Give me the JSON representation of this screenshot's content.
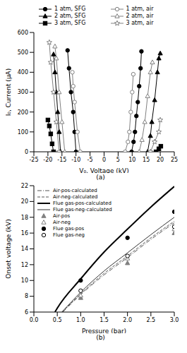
{
  "chart_data": [
    {
      "type": "line",
      "title": "(a)",
      "x_label": "V₀, Voltage (kV)",
      "y_label": "I₀, Current (μA)",
      "xlim": [
        -25,
        25
      ],
      "xticks": [
        -25,
        -20,
        -15,
        -10,
        -5,
        0,
        5,
        10,
        15,
        20,
        25
      ],
      "ylim": [
        0,
        600
      ],
      "yticks": [
        0,
        100,
        200,
        300,
        400,
        500,
        600
      ],
      "legend": "top",
      "series": [
        {
          "name": "1 atm, SFG",
          "color": "#000000",
          "marker": "circle",
          "line_style": "solid",
          "x": [
            -13,
            -12.5,
            -11.8,
            -11,
            -10.5,
            -10,
            null,
            9.8,
            10.5,
            11,
            11.5,
            12,
            12.5,
            13,
            13.3
          ],
          "values": [
            510,
            420,
            300,
            200,
            100,
            0,
            null,
            0,
            50,
            100,
            180,
            250,
            330,
            420,
            505
          ]
        },
        {
          "name": "2 atm, SFG",
          "color": "#000000",
          "marker": "triangle",
          "line_style": "solid",
          "x": [
            -18,
            -17.5,
            -17,
            -16.5,
            -16,
            -15.5,
            null,
            15.5,
            16.5,
            17,
            18,
            19,
            19.5,
            20
          ],
          "values": [
            490,
            400,
            300,
            200,
            100,
            0,
            null,
            0,
            80,
            150,
            260,
            400,
            470,
            495
          ]
        },
        {
          "name": "3 atm, SFG",
          "color": "#000000",
          "marker": "square",
          "line_style": "solid",
          "x": [
            -20,
            -19.5,
            -19,
            -18.5,
            -18,
            null,
            18.5,
            19.5,
            20.2
          ],
          "values": [
            160,
            130,
            90,
            40,
            0,
            null,
            0,
            15,
            28
          ]
        },
        {
          "name": "1 atm, air",
          "color": "#808080",
          "marker": "circle-open",
          "line_style": "solid",
          "x": [
            -11.3,
            -11,
            -10.5,
            -9.5,
            -8.5,
            null,
            7.5,
            8.5,
            9,
            9.5,
            10,
            10.4
          ],
          "values": [
            400,
            330,
            250,
            100,
            0,
            null,
            0,
            50,
            100,
            200,
            300,
            390
          ]
        },
        {
          "name": "2 atm, air",
          "color": "#808080",
          "marker": "triangle-open",
          "line_style": "solid",
          "x": [
            -17.5,
            -17,
            -16,
            -15,
            -14,
            null,
            12.5,
            13.5,
            14.5,
            15.5,
            16.5,
            17.2
          ],
          "values": [
            530,
            470,
            300,
            150,
            0,
            null,
            0,
            60,
            150,
            280,
            400,
            450
          ]
        },
        {
          "name": "3 atm, air",
          "color": "#808080",
          "marker": "star-open",
          "line_style": "solid",
          "x": [
            -19.5,
            -19,
            -18,
            -17,
            -16,
            null,
            16.5,
            18,
            19.5,
            20
          ],
          "values": [
            550,
            450,
            300,
            150,
            0,
            null,
            0,
            50,
            100,
            160
          ]
        }
      ]
    },
    {
      "type": "line",
      "title": "(b)",
      "x_label": "Pressure (bar)",
      "y_label": "Onset voltage (kV)",
      "xlim": [
        0,
        3
      ],
      "xticks": [
        {
          "value": 0,
          "label": "0.0"
        },
        {
          "value": 0.5,
          "label": "0.5"
        },
        {
          "value": 1,
          "label": "1.0"
        },
        {
          "value": 1.5,
          "label": "1.5"
        },
        {
          "value": 2,
          "label": "2.0"
        },
        {
          "value": 2.5,
          "label": "2.5"
        },
        {
          "value": 3,
          "label": "3.0"
        }
      ],
      "ylim": [
        6,
        22
      ],
      "yticks": [
        6,
        8,
        10,
        12,
        14,
        16,
        18,
        20,
        22
      ],
      "legend": "upper left",
      "series": [
        {
          "name": "Air-pos-calculated",
          "type": "line",
          "color": "#555555",
          "marker": "none",
          "line_style": "dash-dot",
          "x": [
            0.62,
            1,
            1.5,
            2,
            2.5,
            3
          ],
          "values": [
            6,
            8.2,
            10.7,
            12.9,
            15.2,
            17.3
          ]
        },
        {
          "name": "Air-neg-calculated",
          "type": "line",
          "color": "#555555",
          "marker": "none",
          "line_style": "dashed",
          "x": [
            0.6,
            1,
            1.5,
            2,
            2.5,
            3
          ],
          "values": [
            6,
            8.3,
            10.9,
            13.1,
            15.4,
            17.5
          ]
        },
        {
          "name": "Flue gas-pos-calculated",
          "type": "line",
          "color": "#000000",
          "marker": "none",
          "line_style": "thick",
          "x": [
            0.45,
            0.5,
            1,
            1.5,
            2,
            2.5,
            3
          ],
          "values": [
            6,
            6.5,
            10.2,
            13.6,
            16.5,
            19.3,
            21.9
          ]
        },
        {
          "name": "Flue gas-neg-calculated",
          "type": "line",
          "color": "#333333",
          "marker": "none",
          "line_style": "solid",
          "x": [
            0.6,
            1,
            1.5,
            2,
            2.5,
            3
          ],
          "values": [
            6,
            8.5,
            11.2,
            13.5,
            15.8,
            18
          ]
        },
        {
          "name": "Air-pos",
          "type": "scatter",
          "color": "#808080",
          "marker": "triangle",
          "x": [
            1,
            2,
            3
          ],
          "values": [
            7.8,
            12.2,
            16
          ]
        },
        {
          "name": "Air-neg",
          "type": "scatter",
          "color": "#808080",
          "marker": "triangle-open",
          "x": [
            1,
            2,
            3
          ],
          "values": [
            8.1,
            12.8,
            16.5
          ]
        },
        {
          "name": "Flue gas-pos",
          "type": "scatter",
          "color": "#000000",
          "marker": "circle",
          "x": [
            1,
            2,
            3
          ],
          "values": [
            10,
            15.4,
            18.7
          ]
        },
        {
          "name": "Flue gas-neg",
          "type": "scatter",
          "color": "#000000",
          "marker": "circle-open",
          "x": [
            1,
            2,
            3
          ],
          "values": [
            8.7,
            13.1,
            16.8
          ]
        }
      ]
    }
  ]
}
